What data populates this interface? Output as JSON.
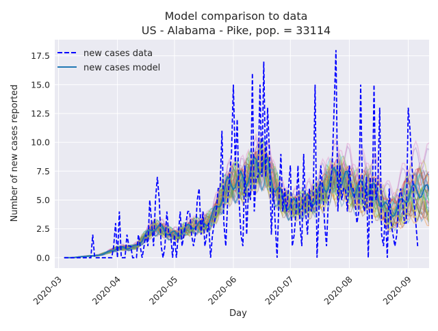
{
  "chart_data": {
    "type": "line",
    "title_line1": "Model comparison to data",
    "title_line2": "US - Alabama - Pike, pop. = 33114",
    "xlabel": "Day",
    "ylabel": "Number of new cases reported",
    "x_range": [
      "2020-02-28",
      "2020-09-12"
    ],
    "ylim": [
      -0.9,
      18.9
    ],
    "y_ticks": [
      0.0,
      2.5,
      5.0,
      7.5,
      10.0,
      12.5,
      15.0,
      17.5
    ],
    "y_tick_labels": [
      "0.0",
      "2.5",
      "5.0",
      "7.5",
      "10.0",
      "12.5",
      "15.0",
      "17.5"
    ],
    "x_ticks": [
      "2020-03-01",
      "2020-04-01",
      "2020-05-01",
      "2020-06-01",
      "2020-07-01",
      "2020-08-01",
      "2020-09-01"
    ],
    "x_tick_labels": [
      "2020-03",
      "2020-04",
      "2020-05",
      "2020-06",
      "2020-07",
      "2020-08",
      "2020-09"
    ],
    "grid": true,
    "legend_position": "top-left",
    "legend": [
      {
        "label": "new cases data",
        "style": "dashed",
        "color": "#0000ff"
      },
      {
        "label": "new cases model",
        "style": "solid",
        "color": "#1f77b4"
      }
    ],
    "data_series": {
      "name": "new cases data",
      "start_date": "2020-03-04",
      "values": [
        0,
        0,
        0,
        0,
        0,
        0,
        0,
        0,
        0,
        0,
        0,
        0,
        0,
        0,
        0,
        2,
        0,
        0,
        0,
        0,
        0,
        0,
        0,
        0,
        0,
        0,
        1,
        3,
        0,
        4,
        0,
        0,
        0,
        2,
        1,
        1,
        0,
        0,
        0,
        2,
        1,
        0,
        1,
        2,
        1,
        5,
        3,
        1,
        5,
        7,
        5,
        1,
        0,
        1,
        4,
        2,
        2,
        0,
        2,
        0,
        2,
        4,
        1,
        2,
        3,
        4,
        4,
        2,
        1,
        2,
        5,
        6,
        2,
        4,
        1,
        2,
        3,
        0,
        2,
        3,
        4,
        6,
        6,
        11,
        3,
        1,
        5,
        7,
        9,
        15,
        8,
        12,
        5,
        2,
        1,
        8,
        2,
        6,
        5,
        16,
        4,
        7,
        7,
        15,
        7,
        17,
        7,
        13,
        9,
        2,
        6,
        3,
        0,
        5,
        9,
        4,
        6,
        4,
        6,
        8,
        1,
        2,
        4,
        8,
        3,
        1,
        9,
        4,
        2,
        6,
        4,
        5,
        15,
        0,
        4,
        8,
        6,
        3,
        1,
        5,
        6,
        8,
        13,
        18,
        4,
        8,
        5,
        6,
        6,
        4,
        8,
        6,
        6,
        5,
        3,
        4,
        15,
        5,
        4,
        7,
        0,
        7,
        3,
        15,
        5,
        6,
        13,
        2,
        1,
        4,
        0,
        6,
        3,
        2,
        1,
        2,
        5,
        6,
        5,
        3,
        3,
        13,
        11,
        8,
        5,
        3,
        1
      ],
      "color": "#0000ff"
    },
    "model_mean": {
      "name": "new cases model",
      "start_date": "2020-03-04",
      "color": "#1f77b4"
    },
    "ensemble_colors": [
      "#1f77b4",
      "#ff7f0e",
      "#2ca02c",
      "#d62728",
      "#9467bd",
      "#8c564b",
      "#e377c2",
      "#7f7f7f",
      "#bcbd22",
      "#17becf"
    ]
  }
}
